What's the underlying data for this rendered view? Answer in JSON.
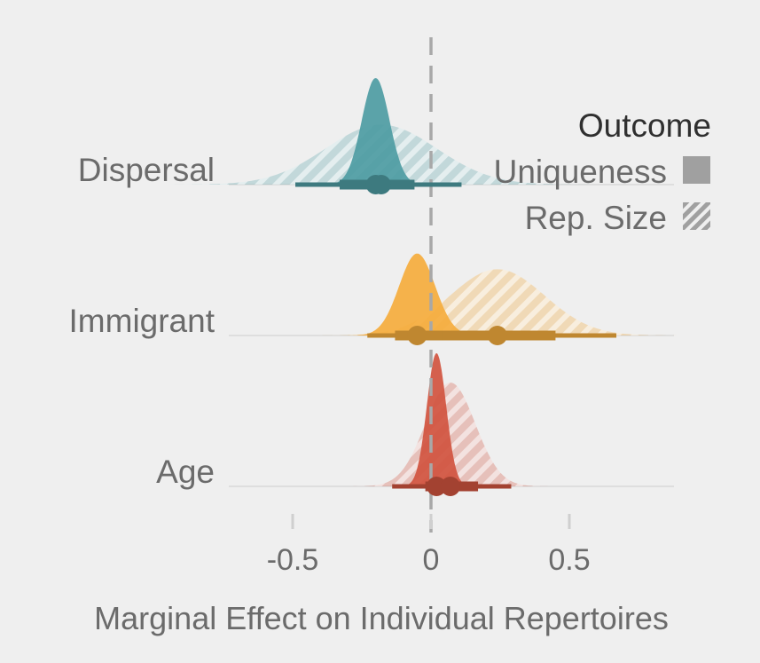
{
  "chart_data": {
    "type": "density",
    "title": "",
    "xlabel": "Marginal Effect on Individual Repertoires",
    "ylabel": "",
    "xlim": [
      -0.75,
      0.95
    ],
    "x_ticks": [
      -0.5,
      0,
      0.5
    ],
    "x_tick_labels": [
      "-0.5",
      "0",
      "0.5"
    ],
    "reference_line_x": 0,
    "grid": false,
    "categories": [
      "Dispersal",
      "Immigrant",
      "Age"
    ],
    "legend": {
      "title": "Outcome",
      "position": "top-right",
      "entries": [
        {
          "label": "Uniqueness",
          "fill": "solid"
        },
        {
          "label": "Rep. Size",
          "fill": "hatched"
        }
      ]
    },
    "colors": {
      "Dispersal": "#4e9ca3",
      "Immigrant": "#f5ad3d",
      "Age": "#d1543f",
      "reference_line": "#a8a8a8",
      "legend_swatch": "#a0a0a0"
    },
    "series": [
      {
        "category": "Dispersal",
        "outcome": "Uniqueness",
        "mean": -0.2,
        "sd": 0.05,
        "interval_66": [
          -0.33,
          -0.06
        ],
        "interval_95": [
          -0.49,
          0.11
        ]
      },
      {
        "category": "Dispersal",
        "outcome": "Rep. Size",
        "mean": -0.18,
        "sd": 0.2,
        "interval_66": [
          -0.33,
          -0.06
        ],
        "interval_95": [
          -0.49,
          0.11
        ]
      },
      {
        "category": "Immigrant",
        "outcome": "Uniqueness",
        "mean": -0.05,
        "sd": 0.065,
        "interval_66": [
          -0.13,
          0.13
        ],
        "interval_95": [
          -0.23,
          0.13
        ]
      },
      {
        "category": "Immigrant",
        "outcome": "Rep. Size",
        "mean": 0.24,
        "sd": 0.17,
        "interval_66": [
          0.04,
          0.45
        ],
        "interval_95": [
          -0.09,
          0.67
        ]
      },
      {
        "category": "Age",
        "outcome": "Uniqueness",
        "mean": 0.02,
        "sd": 0.035,
        "interval_66": [
          -0.02,
          0.06
        ],
        "interval_95": [
          -0.14,
          0.17
        ]
      },
      {
        "category": "Age",
        "outcome": "Rep. Size",
        "mean": 0.07,
        "sd": 0.09,
        "interval_66": [
          -0.02,
          0.17
        ],
        "interval_95": [
          -0.14,
          0.29
        ]
      }
    ]
  }
}
